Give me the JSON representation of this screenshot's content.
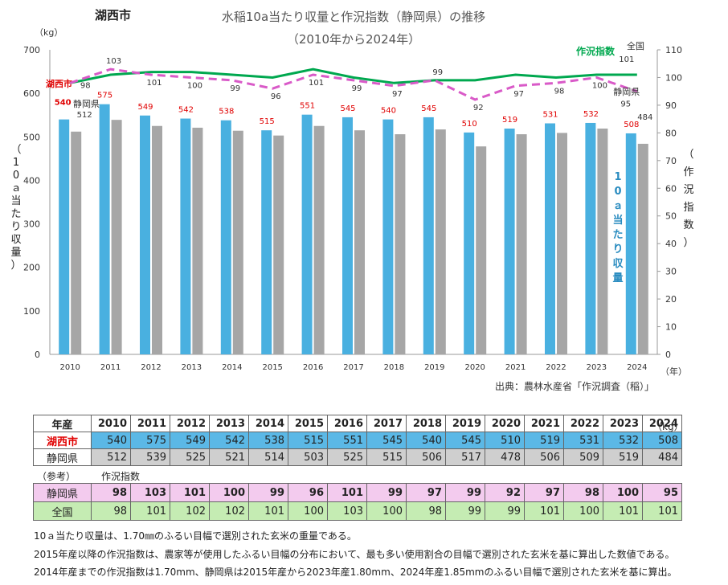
{
  "header": {
    "city": "湖西市",
    "title": "水稲10a当たり収量と作況指数（静岡県）の推移",
    "subtitle": "（2010年から2024年）"
  },
  "chart_data": {
    "type": "bar",
    "title": "水稲10a当たり収量と作況指数（静岡県）の推移",
    "subtitle": "（2010年から2024年）",
    "categories": [
      "2010",
      "2011",
      "2012",
      "2013",
      "2014",
      "2015",
      "2016",
      "2017",
      "2018",
      "2019",
      "2020",
      "2021",
      "2022",
      "2023",
      "2024"
    ],
    "xlabel_unit": "（年）",
    "left_axis": {
      "label": "（10ａ当たり収量）",
      "unit": "（kg）",
      "min": 0,
      "max": 700,
      "step": 100,
      "ticks": [
        "0",
        "100",
        "200",
        "300",
        "400",
        "500",
        "600",
        "700"
      ]
    },
    "right_axis": {
      "label": "（作況指数）",
      "min": 0,
      "max": 110,
      "step": 10,
      "ticks": [
        "0",
        "10",
        "20",
        "30",
        "40",
        "50",
        "60",
        "70",
        "80",
        "90",
        "100",
        "110"
      ]
    },
    "bar_series_label": "10ａ当たり収量",
    "series": [
      {
        "name": "湖西市",
        "kind": "bar",
        "axis": "left",
        "color": "#49b0e0",
        "values": [
          540,
          575,
          549,
          542,
          538,
          515,
          551,
          545,
          540,
          545,
          510,
          519,
          531,
          532,
          508
        ]
      },
      {
        "name": "静岡県",
        "kind": "bar",
        "axis": "left",
        "color": "#a6a6a6",
        "values": [
          512,
          539,
          525,
          521,
          514,
          503,
          525,
          515,
          506,
          517,
          478,
          506,
          509,
          519,
          484
        ]
      },
      {
        "name": "静岡県",
        "kind": "line",
        "axis": "right",
        "color": "#d95ac8",
        "dashed": true,
        "values": [
          98,
          103,
          101,
          100,
          99,
          96,
          101,
          99,
          97,
          99,
          92,
          97,
          98,
          100,
          95
        ]
      },
      {
        "name": "全国",
        "kind": "line",
        "axis": "right",
        "color": "#00a84f",
        "dashed": false,
        "values": [
          98,
          101,
          102,
          102,
          101,
          100,
          103,
          100,
          98,
          99,
          99,
          101,
          100,
          101,
          101
        ]
      }
    ],
    "line_legend": "作況指数",
    "annotations": {
      "city_bar": "湖西市",
      "pref_bar": "静岡県",
      "pref_line": "静岡県",
      "national_line": "全国"
    }
  },
  "source": "出典：農林水産省「作況調査（稲）」",
  "table_unit": "（kg）",
  "table": {
    "header_label": "年産",
    "years": [
      "2010",
      "2011",
      "2012",
      "2013",
      "2014",
      "2015",
      "2016",
      "2017",
      "2018",
      "2019",
      "2020",
      "2021",
      "2022",
      "2023",
      "2024"
    ],
    "city_label": "湖西市",
    "city_values": [
      "540",
      "575",
      "549",
      "542",
      "538",
      "515",
      "551",
      "545",
      "540",
      "545",
      "510",
      "519",
      "531",
      "532",
      "508"
    ],
    "pref_label": "静岡県",
    "pref_values": [
      "512",
      "539",
      "525",
      "521",
      "514",
      "503",
      "525",
      "515",
      "506",
      "517",
      "478",
      "506",
      "509",
      "519",
      "484"
    ]
  },
  "reference": {
    "label": "（参考）",
    "index_label": "作況指数",
    "pref_label": "静岡県",
    "pref_index": [
      "98",
      "103",
      "101",
      "100",
      "99",
      "96",
      "101",
      "99",
      "97",
      "99",
      "92",
      "97",
      "98",
      "100",
      "95"
    ],
    "national_label": "全国",
    "national_index": [
      "98",
      "101",
      "102",
      "102",
      "101",
      "100",
      "103",
      "100",
      "98",
      "99",
      "99",
      "101",
      "100",
      "101",
      "101"
    ]
  },
  "notes": [
    "10ａ当たり収量は、1.70㎜のふるい目幅で選別された玄米の重量である。",
    "2015年産以降の作況指数は、農家等が使用したふるい目幅の分布において、最も多い使用割合の目幅で選別された玄米を基に算出した数値である。",
    "2014年産までの作況指数は1.70mm、静岡県は2015年産から2023年産1.80mm、2024年産1.85mmのふるい目幅で選別された玄米を基に算出。"
  ]
}
